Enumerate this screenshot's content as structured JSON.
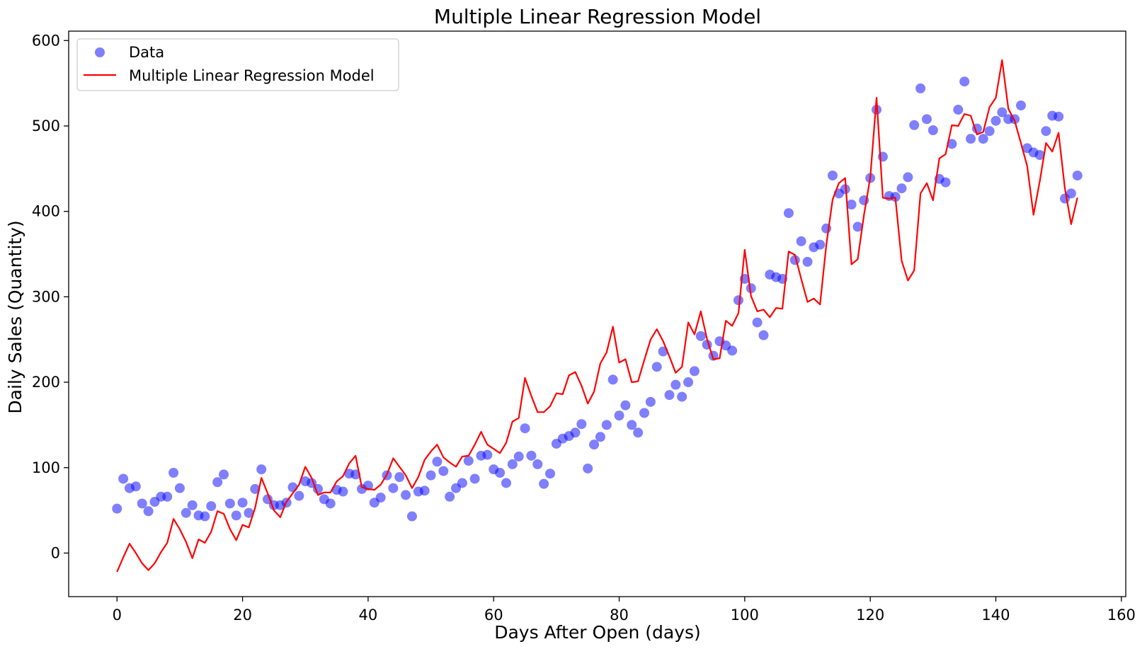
{
  "chart_data": {
    "type": "scatter",
    "title": "Multiple Linear Regression Model",
    "xlabel": "Days After Open (days)",
    "ylabel": "Daily Sales (Quantity)",
    "xlim": [
      -7.7,
      160.7
    ],
    "ylim": [
      -51,
      611
    ],
    "xticks": [
      0,
      20,
      40,
      60,
      80,
      100,
      120,
      140,
      160
    ],
    "yticks": [
      0,
      100,
      200,
      300,
      400,
      500,
      600
    ],
    "grid": false,
    "legend_position": "top-left",
    "series": [
      {
        "name": "Data",
        "kind": "scatter",
        "color": "#0000ff",
        "opacity": 0.5,
        "x": [
          0,
          1,
          2,
          3,
          4,
          5,
          6,
          7,
          8,
          9,
          10,
          11,
          12,
          13,
          14,
          15,
          16,
          17,
          18,
          19,
          20,
          21,
          22,
          23,
          24,
          25,
          26,
          27,
          28,
          29,
          30,
          31,
          32,
          33,
          34,
          35,
          36,
          37,
          38,
          39,
          40,
          41,
          42,
          43,
          44,
          45,
          46,
          47,
          48,
          49,
          50,
          51,
          52,
          53,
          54,
          55,
          56,
          57,
          58,
          59,
          60,
          61,
          62,
          63,
          64,
          65,
          66,
          67,
          68,
          69,
          70,
          71,
          72,
          73,
          74,
          75,
          76,
          77,
          78,
          79,
          80,
          81,
          82,
          83,
          84,
          85,
          86,
          87,
          88,
          89,
          90,
          91,
          92,
          93,
          94,
          95,
          96,
          97,
          98,
          99,
          100,
          101,
          102,
          103,
          104,
          105,
          106,
          107,
          108,
          109,
          110,
          111,
          112,
          113,
          114,
          115,
          116,
          117,
          118,
          119,
          120,
          121,
          122,
          123,
          124,
          125,
          126,
          127,
          128,
          129,
          130,
          131,
          132,
          133,
          134,
          135,
          136,
          137,
          138,
          139,
          140,
          141,
          142,
          143,
          144,
          145,
          146,
          147,
          148,
          149,
          150,
          151,
          152,
          153
        ],
        "y": [
          52,
          87,
          76,
          78,
          58,
          49,
          60,
          66,
          66,
          94,
          76,
          47,
          56,
          44,
          43,
          55,
          83,
          92,
          58,
          44,
          59,
          47,
          75,
          98,
          63,
          56,
          56,
          59,
          77,
          67,
          84,
          82,
          75,
          63,
          58,
          74,
          72,
          93,
          92,
          75,
          79,
          59,
          65,
          91,
          76,
          89,
          68,
          43,
          72,
          73,
          91,
          107,
          96,
          66,
          76,
          82,
          108,
          87,
          114,
          115,
          98,
          94,
          82,
          104,
          113,
          146,
          114,
          104,
          81,
          93,
          128,
          134,
          137,
          141,
          151,
          99,
          127,
          136,
          150,
          203,
          161,
          173,
          150,
          141,
          164,
          177,
          218,
          236,
          185,
          197,
          183,
          200,
          213,
          254,
          244,
          231,
          248,
          243,
          237,
          296,
          321,
          310,
          270,
          255,
          326,
          323,
          321,
          398,
          343,
          365,
          341,
          358,
          361,
          380,
          442,
          421,
          426,
          408,
          382,
          413,
          439,
          519,
          464,
          418,
          417,
          427,
          440,
          501,
          544,
          508,
          495,
          438,
          434,
          479,
          519,
          552,
          485,
          497,
          485,
          494,
          506,
          516,
          508,
          508,
          524,
          474,
          469,
          466,
          494,
          512,
          511,
          415,
          421,
          442
        ]
      },
      {
        "name": "Multiple Linear Regression Model",
        "kind": "line",
        "color": "#ff0000",
        "x": [
          0,
          1,
          2,
          3,
          4,
          5,
          6,
          7,
          8,
          9,
          10,
          11,
          12,
          13,
          14,
          15,
          16,
          17,
          18,
          19,
          20,
          21,
          22,
          23,
          24,
          25,
          26,
          27,
          28,
          29,
          30,
          31,
          32,
          33,
          34,
          35,
          36,
          37,
          38,
          39,
          40,
          41,
          42,
          43,
          44,
          45,
          46,
          47,
          48,
          49,
          50,
          51,
          52,
          53,
          54,
          55,
          56,
          57,
          58,
          59,
          60,
          61,
          62,
          63,
          64,
          65,
          66,
          67,
          68,
          69,
          70,
          71,
          72,
          73,
          74,
          75,
          76,
          77,
          78,
          79,
          80,
          81,
          82,
          83,
          84,
          85,
          86,
          87,
          88,
          89,
          90,
          91,
          92,
          93,
          94,
          95,
          96,
          97,
          98,
          99,
          100,
          101,
          102,
          103,
          104,
          105,
          106,
          107,
          108,
          109,
          110,
          111,
          112,
          113,
          114,
          115,
          116,
          117,
          118,
          119,
          120,
          121,
          122,
          123,
          124,
          125,
          126,
          127,
          128,
          129,
          130,
          131,
          132,
          133,
          134,
          135,
          136,
          137,
          138,
          139,
          140,
          141,
          142,
          143,
          144,
          145,
          146,
          147,
          148,
          149,
          150,
          151,
          152,
          153
        ],
        "y": [
          -22,
          -5,
          11,
          0,
          -12,
          -20,
          -12,
          1,
          12,
          40,
          28,
          13,
          -6,
          16,
          12,
          25,
          49,
          46,
          28,
          15,
          33,
          30,
          53,
          88,
          70,
          50,
          42,
          60,
          70,
          80,
          101,
          88,
          68,
          71,
          71,
          84,
          90,
          105,
          114,
          77,
          75,
          74,
          80,
          92,
          111,
          101,
          91,
          76,
          89,
          109,
          119,
          127,
          112,
          106,
          101,
          113,
          114,
          127,
          142,
          127,
          122,
          117,
          129,
          154,
          158,
          205,
          184,
          165,
          165,
          172,
          187,
          186,
          208,
          212,
          196,
          175,
          189,
          222,
          235,
          265,
          223,
          227,
          200,
          201,
          226,
          250,
          262,
          248,
          230,
          211,
          218,
          270,
          256,
          283,
          250,
          227,
          228,
          272,
          266,
          281,
          355,
          301,
          283,
          285,
          276,
          287,
          286,
          353,
          349,
          321,
          294,
          298,
          291,
          361,
          414,
          433,
          439,
          338,
          344,
          396,
          440,
          533,
          416,
          415,
          416,
          342,
          319,
          331,
          421,
          433,
          413,
          462,
          467,
          501,
          500,
          514,
          512,
          490,
          493,
          522,
          533,
          577,
          520,
          506,
          480,
          453,
          396,
          435,
          480,
          470,
          492,
          427,
          385,
          416
        ]
      }
    ]
  }
}
